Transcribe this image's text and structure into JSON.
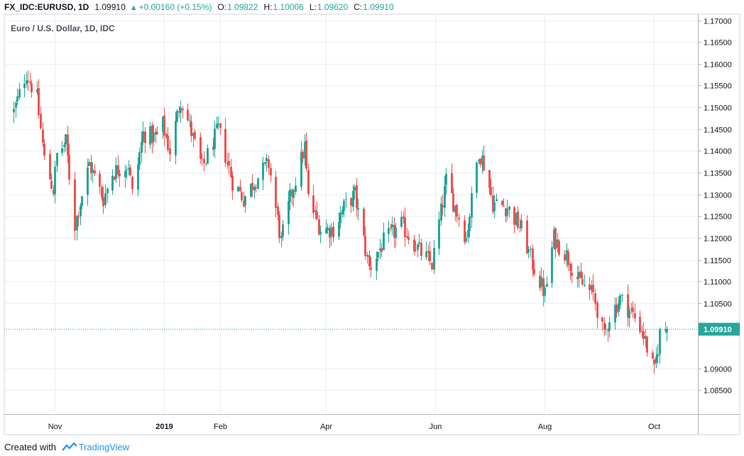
{
  "header": {
    "symbol": "FX_IDC:EURUSD, 1D",
    "close_value": "1.09910",
    "change": "+0.00160 (+0.15%)",
    "open_label": "O:",
    "open_value": "1.09822",
    "high_label": "H:",
    "high_value": "1.10006",
    "low_label": "L:",
    "low_value": "1.09620",
    "close_label": "C:",
    "close_value2": "1.09910"
  },
  "credit": {
    "text": "Created with",
    "brand": "TradingView"
  },
  "colors": {
    "up": "#26a69a",
    "down": "#ef5350",
    "grid": "#e9eef4",
    "axis": "#b2b5be"
  },
  "chart_data": {
    "type": "candlestick",
    "title": "Euro / U.S. Dollar, 1D, IDC",
    "y_tick_labels": [
      "1.17000",
      "1.16500",
      "1.16000",
      "1.15500",
      "1.15000",
      "1.14500",
      "1.14000",
      "1.13500",
      "1.13000",
      "1.12500",
      "1.12000",
      "1.11500",
      "1.11000",
      "1.10500",
      "1.09910",
      "1.09000",
      "1.08500"
    ],
    "y_ticks": [
      1.17,
      1.165,
      1.16,
      1.155,
      1.15,
      1.145,
      1.14,
      1.135,
      1.13,
      1.125,
      1.12,
      1.115,
      1.11,
      1.105,
      1.0991,
      1.09,
      1.085
    ],
    "ylim": [
      1.0795,
      1.1714
    ],
    "x_tick_labels": [
      "Nov",
      "2019",
      "Feb",
      "Apr",
      "Jun",
      "Aug",
      "Oct"
    ],
    "last_price": 1.0991,
    "last_price_label": "1.09910",
    "anchors": [
      [
        "2018-10-09",
        1.149
      ],
      [
        "2018-10-16",
        1.158
      ],
      [
        "2018-10-22",
        1.152
      ],
      [
        "2018-10-26",
        1.138
      ],
      [
        "2018-10-31",
        1.131
      ],
      [
        "2018-11-02",
        1.139
      ],
      [
        "2018-11-07",
        1.142
      ],
      [
        "2018-11-12",
        1.123
      ],
      [
        "2018-11-20",
        1.137
      ],
      [
        "2018-11-23",
        1.134
      ],
      [
        "2018-11-28",
        1.129
      ],
      [
        "2018-12-03",
        1.135
      ],
      [
        "2018-12-07",
        1.136
      ],
      [
        "2018-12-12",
        1.137
      ],
      [
        "2018-12-14",
        1.13
      ],
      [
        "2018-12-20",
        1.144
      ],
      [
        "2018-12-27",
        1.143
      ],
      [
        "2018-12-31",
        1.146
      ],
      [
        "2019-01-04",
        1.14
      ],
      [
        "2019-01-10",
        1.152
      ],
      [
        "2019-01-14",
        1.147
      ],
      [
        "2019-01-22",
        1.136
      ],
      [
        "2019-01-31",
        1.145
      ],
      [
        "2019-02-08",
        1.133
      ],
      [
        "2019-02-14",
        1.129
      ],
      [
        "2019-02-20",
        1.133
      ],
      [
        "2019-02-28",
        1.137
      ],
      [
        "2019-03-07",
        1.119
      ],
      [
        "2019-03-12",
        1.129
      ],
      [
        "2019-03-20",
        1.141
      ],
      [
        "2019-03-22",
        1.129
      ],
      [
        "2019-03-29",
        1.122
      ],
      [
        "2019-04-05",
        1.122
      ],
      [
        "2019-04-11",
        1.127
      ],
      [
        "2019-04-17",
        1.13
      ],
      [
        "2019-04-25",
        1.113
      ],
      [
        "2019-05-03",
        1.119
      ],
      [
        "2019-05-13",
        1.123
      ],
      [
        "2019-05-23",
        1.117
      ],
      [
        "2019-05-30",
        1.114
      ],
      [
        "2019-06-07",
        1.133
      ],
      [
        "2019-06-18",
        1.12
      ],
      [
        "2019-06-25",
        1.14
      ],
      [
        "2019-06-28",
        1.137
      ],
      [
        "2019-07-03",
        1.128
      ],
      [
        "2019-07-11",
        1.127
      ],
      [
        "2019-07-19",
        1.122
      ],
      [
        "2019-07-25",
        1.114
      ],
      [
        "2019-08-01",
        1.107
      ],
      [
        "2019-08-06",
        1.12
      ],
      [
        "2019-08-13",
        1.116
      ],
      [
        "2019-08-20",
        1.11
      ],
      [
        "2019-08-28",
        1.107
      ],
      [
        "2019-09-03",
        1.097
      ],
      [
        "2019-09-06",
        1.102
      ],
      [
        "2019-09-12",
        1.106
      ],
      [
        "2019-09-18",
        1.103
      ],
      [
        "2019-09-24",
        1.099
      ],
      [
        "2019-10-01",
        1.089
      ],
      [
        "2019-10-04",
        1.098
      ],
      [
        "2019-10-08",
        1.0991
      ]
    ]
  }
}
